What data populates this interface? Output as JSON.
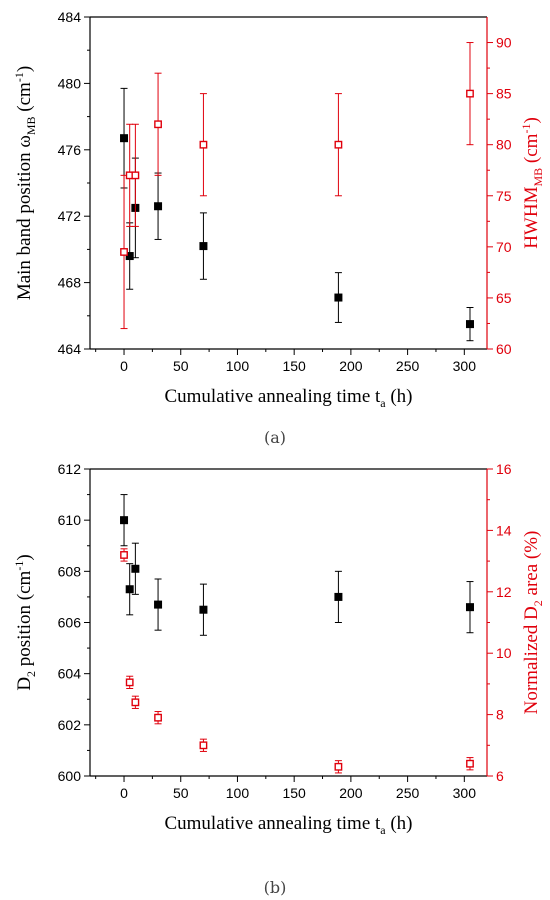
{
  "chart_data": [
    {
      "type": "scatter",
      "panel_label": "(a)",
      "xlabel": {
        "main": "Cumulative annealing time t",
        "sub": "a",
        "tail": " (h)"
      },
      "ylabel_left": {
        "main": "Main band position ω",
        "sub": "MB",
        "tail": " (cm",
        "sup": "-1",
        "close": ")"
      },
      "ylabel_right": {
        "main": "HWHM",
        "sub": "MB",
        "tail": " (cm",
        "sup": "-1",
        "close": ")"
      },
      "xlim": [
        -30,
        320
      ],
      "ylim_left": [
        464,
        484
      ],
      "ylim_right": [
        60,
        92.5
      ],
      "xticks": [
        0,
        50,
        100,
        150,
        200,
        250,
        300
      ],
      "yticks_left": [
        464,
        468,
        472,
        476,
        480,
        484
      ],
      "yticks_right": [
        60,
        65,
        70,
        75,
        80,
        85,
        90
      ],
      "left_color": "#000000",
      "right_color": "#e0000c",
      "series": [
        {
          "axis": "left",
          "marker": "filled-square",
          "x": [
            0,
            5,
            10,
            30,
            70,
            189,
            305
          ],
          "y": [
            476.7,
            469.6,
            472.5,
            472.6,
            470.2,
            467.1,
            465.5
          ],
          "err": [
            3.0,
            2.0,
            3.0,
            2.0,
            2.0,
            1.5,
            1.0
          ]
        },
        {
          "axis": "right",
          "marker": "open-square",
          "x": [
            0,
            5,
            10,
            30,
            70,
            189,
            305
          ],
          "y": [
            69.5,
            77.0,
            77.0,
            82.0,
            80.0,
            80.0,
            85.0
          ],
          "err": [
            7.5,
            5.0,
            5.0,
            5.0,
            5.0,
            5.0,
            5.0
          ]
        }
      ]
    },
    {
      "type": "scatter",
      "panel_label": "(b)",
      "xlabel": {
        "main": "Cumulative annealing time t",
        "sub": "a",
        "tail": " (h)"
      },
      "ylabel_left": {
        "main": "D",
        "sub": "2",
        "tail": " position (cm",
        "sup": "-1",
        "close": ")"
      },
      "ylabel_right": {
        "main": "Normalized D",
        "sub": "2",
        "tail": " area (%)",
        "sup": "",
        "close": ""
      },
      "xlim": [
        -30,
        320
      ],
      "ylim_left": [
        600,
        612
      ],
      "ylim_right": [
        6,
        16
      ],
      "xticks": [
        0,
        50,
        100,
        150,
        200,
        250,
        300
      ],
      "yticks_left": [
        600,
        602,
        604,
        606,
        608,
        610,
        612
      ],
      "yticks_right": [
        6,
        8,
        10,
        12,
        14,
        16
      ],
      "left_color": "#000000",
      "right_color": "#e0000c",
      "series": [
        {
          "axis": "left",
          "marker": "filled-square",
          "x": [
            0,
            5,
            10,
            30,
            70,
            189,
            305
          ],
          "y": [
            610.0,
            607.3,
            608.1,
            606.7,
            606.5,
            607.0,
            606.6
          ],
          "err": [
            1.0,
            1.0,
            1.0,
            1.0,
            1.0,
            1.0,
            1.0
          ]
        },
        {
          "axis": "right",
          "marker": "open-square",
          "x": [
            0,
            5,
            10,
            30,
            70,
            189,
            305
          ],
          "y": [
            13.2,
            9.05,
            8.4,
            7.9,
            7.0,
            6.3,
            6.4
          ],
          "err": [
            0.2,
            0.2,
            0.2,
            0.2,
            0.2,
            0.2,
            0.2
          ]
        }
      ]
    }
  ]
}
